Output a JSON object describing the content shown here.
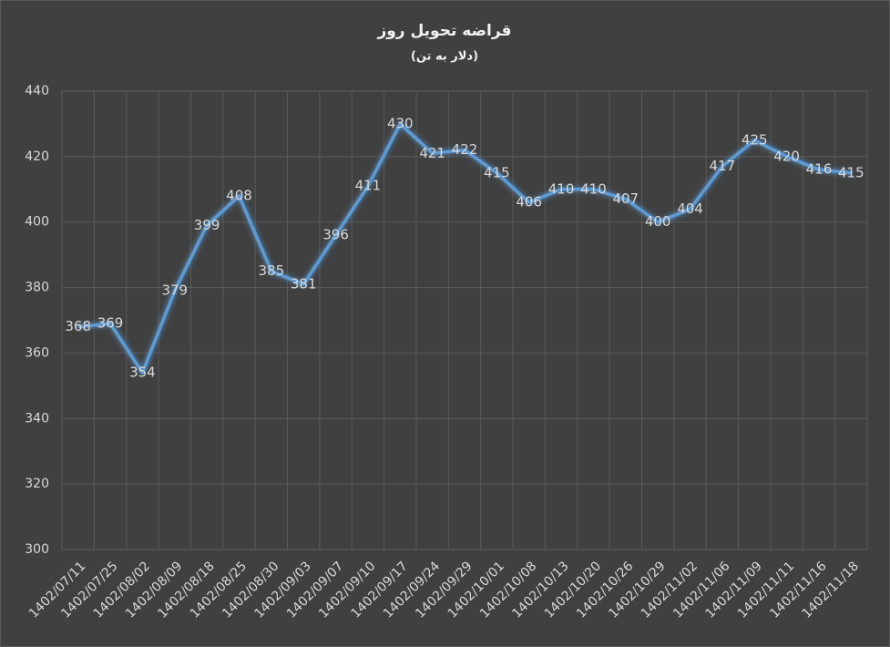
{
  "chart_data": {
    "type": "line",
    "title": "قراضه تحویل روز",
    "subtitle": "(دلار به تن)",
    "categories": [
      "1402/07/11",
      "1402/07/25",
      "1402/08/02",
      "1402/08/09",
      "1402/08/18",
      "1402/08/25",
      "1402/08/30",
      "1402/09/03",
      "1402/09/07",
      "1402/09/10",
      "1402/09/17",
      "1402/09/24",
      "1402/09/29",
      "1402/10/01",
      "1402/10/08",
      "1402/10/13",
      "1402/10/20",
      "1402/10/26",
      "1402/10/29",
      "1402/11/02",
      "1402/11/06",
      "1402/11/09",
      "1402/11/11",
      "1402/11/16",
      "1402/11/18"
    ],
    "values": [
      368,
      369,
      354,
      379,
      399,
      408,
      385,
      381,
      396,
      411,
      430,
      421,
      422,
      415,
      406,
      410,
      410,
      407,
      400,
      404,
      417,
      425,
      420,
      416,
      415
    ],
    "color": "#5b9bd5",
    "ylim": [
      300,
      440
    ],
    "yticks": [
      300,
      320,
      340,
      360,
      380,
      400,
      420,
      440
    ],
    "grid": true
  }
}
